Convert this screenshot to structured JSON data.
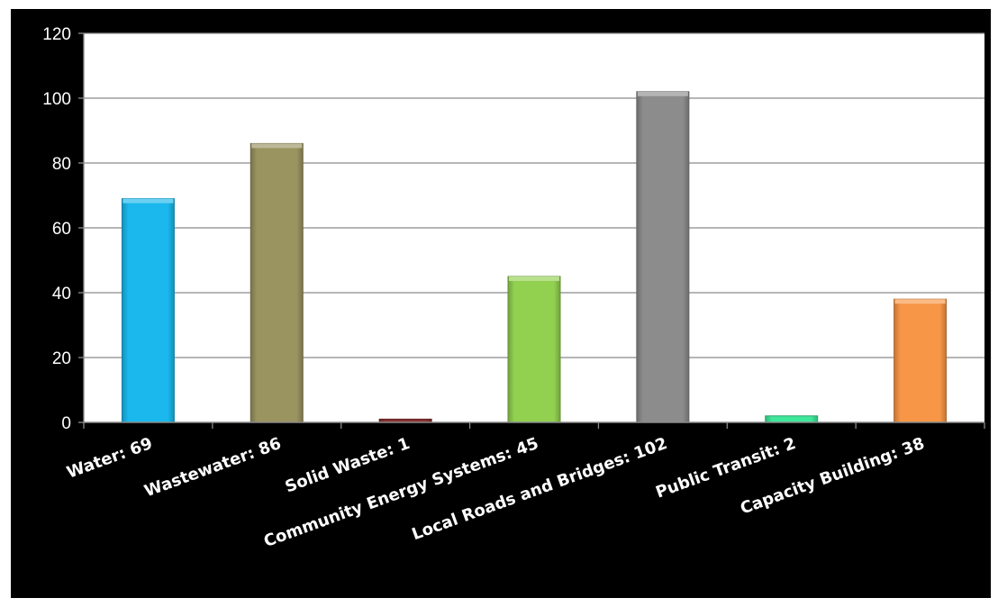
{
  "chart_data": {
    "type": "bar",
    "categories": [
      "Water: 69",
      "Wastewater: 86",
      "Solid Waste: 1",
      "Community Energy Systems: 45",
      "Local Roads and Bridges: 102",
      "Public Transit: 2",
      "Capacity Building: 38"
    ],
    "values": [
      69,
      86,
      1,
      45,
      102,
      2,
      38
    ],
    "colors": [
      "#1ab8ec",
      "#9a9460",
      "#8a3030",
      "#92d050",
      "#8c8c8c",
      "#3ee89a",
      "#f79646"
    ],
    "ylim": [
      0,
      120
    ],
    "yticks": [
      0,
      20,
      40,
      60,
      80,
      100,
      120
    ],
    "grid": true,
    "legend": "none",
    "background": "#000000",
    "plot_background": "#ffffff",
    "title": "",
    "xlabel": "",
    "ylabel": ""
  }
}
